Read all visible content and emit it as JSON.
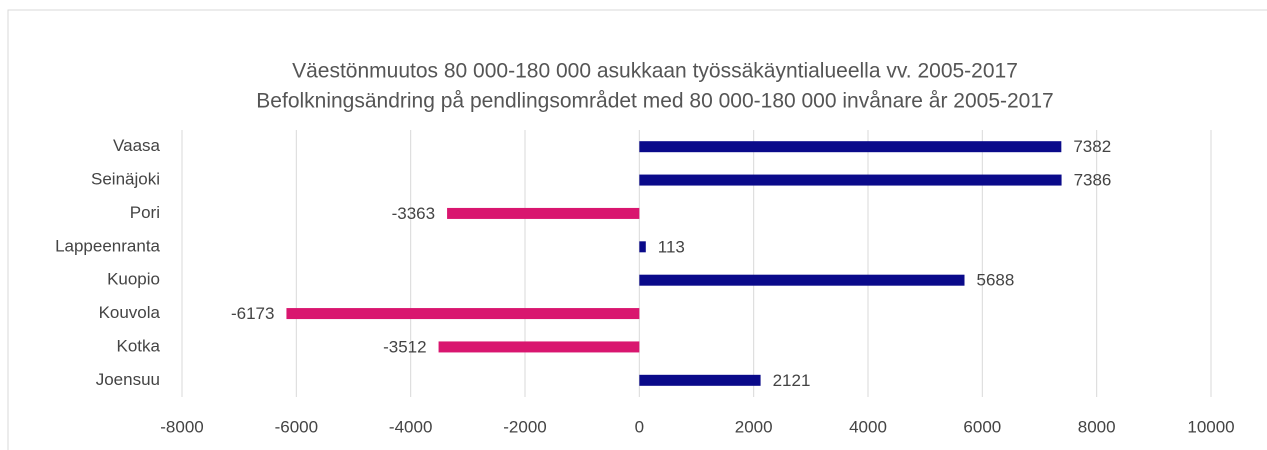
{
  "chart_data": {
    "type": "hbar",
    "title": "Väestönmuutos 80 000-180 000 asukkaan työssäkäyntialueella vv. 2005-2017",
    "subtitle": "Befolkningsändring på pendlingsområdet med 80 000-180 000 invånare år 2005-2017",
    "categories": [
      "Vaasa",
      "Seinäjoki",
      "Pori",
      "Lappeenranta",
      "Kuopio",
      "Kouvola",
      "Kotka",
      "Joensuu"
    ],
    "values": [
      7382,
      7386,
      -3363,
      113,
      5688,
      -6173,
      -3512,
      2121
    ],
    "colors": [
      "#0a0a8a",
      "#0a0a8a",
      "#d9166f",
      "#0a0a8a",
      "#0a0a8a",
      "#d9166f",
      "#d9166f",
      "#0a0a8a"
    ],
    "xlim": [
      -8000,
      10000
    ],
    "xticks": [
      -8000,
      -6000,
      -4000,
      -2000,
      0,
      2000,
      4000,
      6000,
      8000,
      10000
    ],
    "grid": true
  }
}
